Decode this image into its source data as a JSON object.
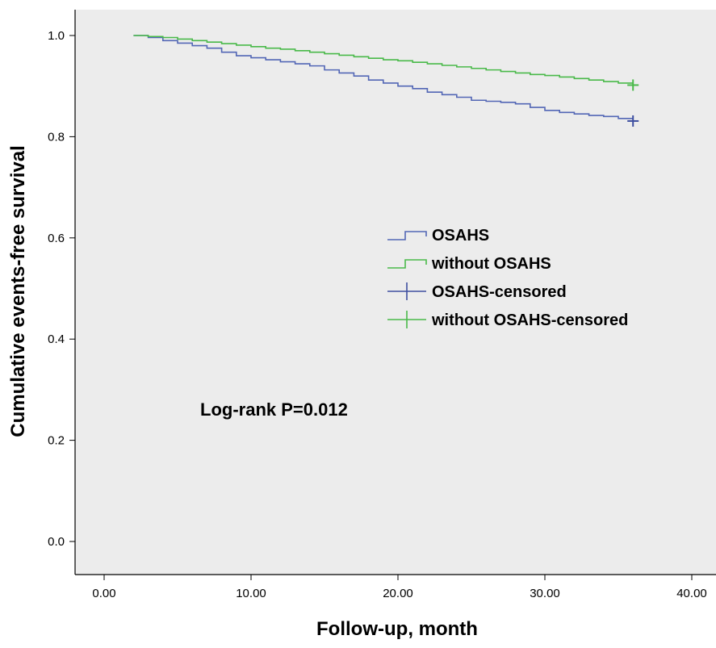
{
  "chart_data": {
    "type": "line",
    "subtype": "kaplan-meier-step",
    "title": "",
    "xlabel": "Follow-up, month",
    "ylabel": "Cumulative events-free survival",
    "xlim": [
      0,
      40
    ],
    "ylim": [
      0,
      1
    ],
    "x_ticks": [
      "0.00",
      "10.00",
      "20.00",
      "30.00",
      "40.00"
    ],
    "y_ticks": [
      "0.0",
      "0.2",
      "0.4",
      "0.6",
      "0.8",
      "1.0"
    ],
    "grid": false,
    "background": "#ececec",
    "legend_position": "center-right",
    "annotation": "Log-rank P=0.012",
    "series": [
      {
        "name": "OSAHS",
        "color": "#5266b5",
        "x": [
          2,
          3,
          4,
          5,
          6,
          7,
          8,
          9,
          10,
          11,
          12,
          13,
          14,
          15,
          16,
          17,
          18,
          19,
          20,
          21,
          22,
          23,
          24,
          25,
          26,
          27,
          28,
          29,
          30,
          31,
          32,
          33,
          34,
          35,
          36
        ],
        "y": [
          1.0,
          0.996,
          0.99,
          0.985,
          0.98,
          0.975,
          0.967,
          0.96,
          0.956,
          0.952,
          0.948,
          0.944,
          0.94,
          0.932,
          0.926,
          0.92,
          0.912,
          0.906,
          0.9,
          0.895,
          0.888,
          0.883,
          0.878,
          0.872,
          0.87,
          0.868,
          0.865,
          0.858,
          0.852,
          0.848,
          0.845,
          0.842,
          0.84,
          0.836,
          0.831
        ]
      },
      {
        "name": "without OSAHS",
        "color": "#49b949",
        "x": [
          2,
          3,
          4,
          5,
          6,
          7,
          8,
          9,
          10,
          11,
          12,
          13,
          14,
          15,
          16,
          17,
          18,
          19,
          20,
          21,
          22,
          23,
          24,
          25,
          26,
          27,
          28,
          29,
          30,
          31,
          32,
          33,
          34,
          35,
          36
        ],
        "y": [
          1.0,
          0.998,
          0.996,
          0.993,
          0.99,
          0.987,
          0.984,
          0.981,
          0.978,
          0.975,
          0.973,
          0.97,
          0.967,
          0.964,
          0.961,
          0.958,
          0.955,
          0.952,
          0.95,
          0.947,
          0.944,
          0.941,
          0.938,
          0.935,
          0.932,
          0.929,
          0.926,
          0.923,
          0.921,
          0.918,
          0.915,
          0.912,
          0.909,
          0.906,
          0.902
        ]
      }
    ],
    "censored": [
      {
        "name": "OSAHS-censored",
        "color": "#3e4fa0",
        "x": [
          36
        ],
        "y": [
          0.831
        ]
      },
      {
        "name": "without OSAHS-censored",
        "color": "#49b949",
        "x": [
          36
        ],
        "y": [
          0.902
        ]
      }
    ]
  }
}
